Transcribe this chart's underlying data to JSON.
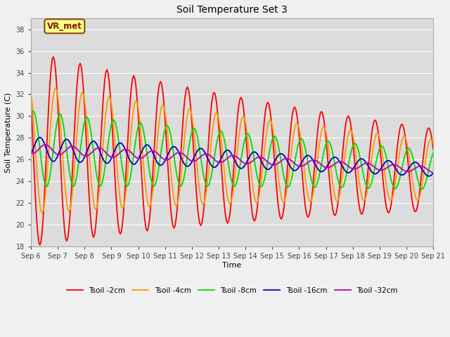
{
  "title": "Soil Temperature Set 3",
  "xlabel": "Time",
  "ylabel": "Soil Temperature (C)",
  "ylim": [
    18,
    39
  ],
  "yticks": [
    18,
    20,
    22,
    24,
    26,
    28,
    30,
    32,
    34,
    36,
    38
  ],
  "x_tick_labels": [
    "Sep 6",
    "Sep 7",
    "Sep 8",
    "Sep 9",
    "Sep 10",
    "Sep 11",
    "Sep 12",
    "Sep 13",
    "Sep 14",
    "Sep 15",
    "Sep 16",
    "Sep 17",
    "Sep 18",
    "Sep 19",
    "Sep 20",
    "Sep 21"
  ],
  "annotation_text": "VR_met",
  "colors": {
    "Tsoil -2cm": "#FF0000",
    "Tsoil -4cm": "#FF9900",
    "Tsoil -8cm": "#00DD00",
    "Tsoil -16cm": "#0000CC",
    "Tsoil -32cm": "#BB00BB"
  },
  "legend_labels": [
    "Tsoil -2cm",
    "Tsoil -4cm",
    "Tsoil -8cm",
    "Tsoil -16cm",
    "Tsoil -32cm"
  ],
  "bg_color": "#DCDCDC",
  "grid_color": "#FFFFFF",
  "fig_bg": "#F0F0F0"
}
